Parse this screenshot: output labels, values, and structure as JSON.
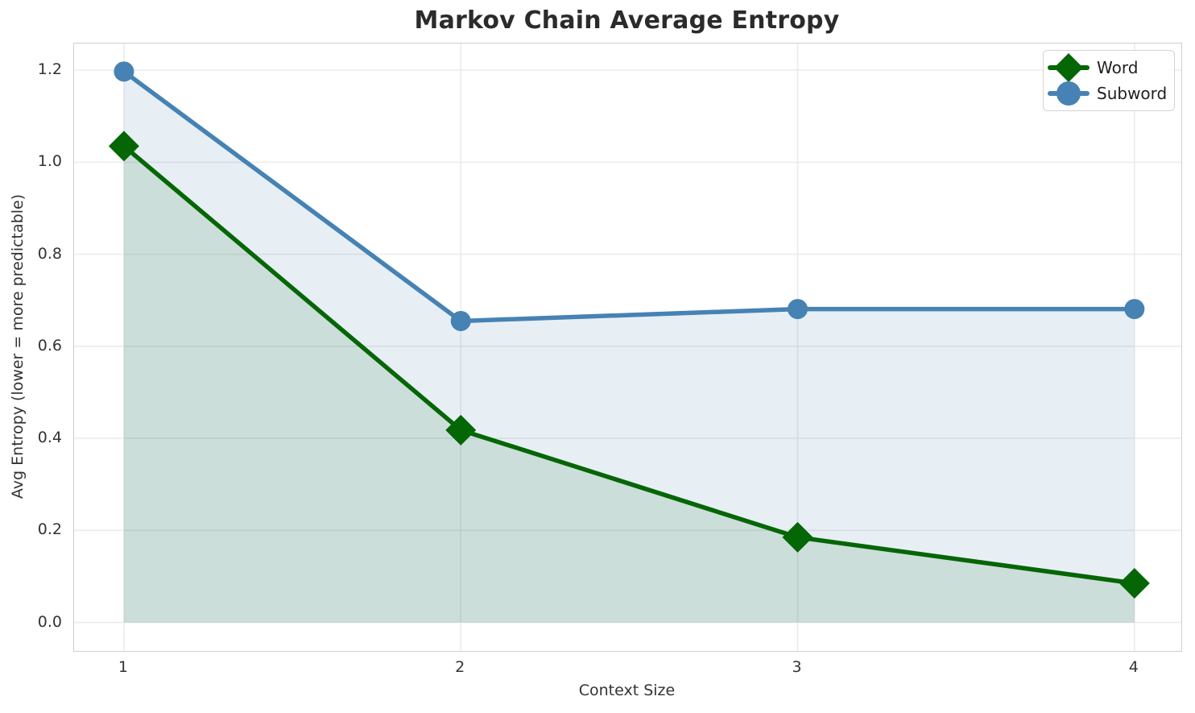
{
  "figure": {
    "background_color": "#ffffff",
    "text_color": "#333333",
    "title_color": "#2b2b2b"
  },
  "chart_data": {
    "type": "line",
    "title": "Markov Chain Average Entropy",
    "xlabel": "Context Size",
    "ylabel": "Avg Entropy (lower = more predictable)",
    "x": [
      1,
      2,
      3,
      4
    ],
    "series": [
      {
        "name": "Word",
        "marker": "diamond",
        "color": "#056605",
        "fill_color": "rgba(5,102,5,0.12)",
        "values": [
          1.035,
          0.418,
          0.185,
          0.085
        ]
      },
      {
        "name": "Subword",
        "marker": "circle",
        "color": "#4682b4",
        "fill_color": "rgba(70,130,180,0.13)",
        "values": [
          1.197,
          0.655,
          0.681,
          0.681
        ]
      }
    ],
    "xticks": [
      1,
      2,
      3,
      4
    ],
    "yticks": [
      0.0,
      0.2,
      0.4,
      0.6,
      0.8,
      1.0,
      1.2
    ],
    "xlim": [
      0.852,
      4.139
    ],
    "ylim": [
      -0.062,
      1.258
    ],
    "grid": true,
    "grid_color": "#ebebeb",
    "spine_color": "#cfcfcf",
    "legend_position": "upper right",
    "legend_entries": [
      "Word",
      "Subword"
    ],
    "area_fill": true,
    "fill_baseline": 0.0
  }
}
